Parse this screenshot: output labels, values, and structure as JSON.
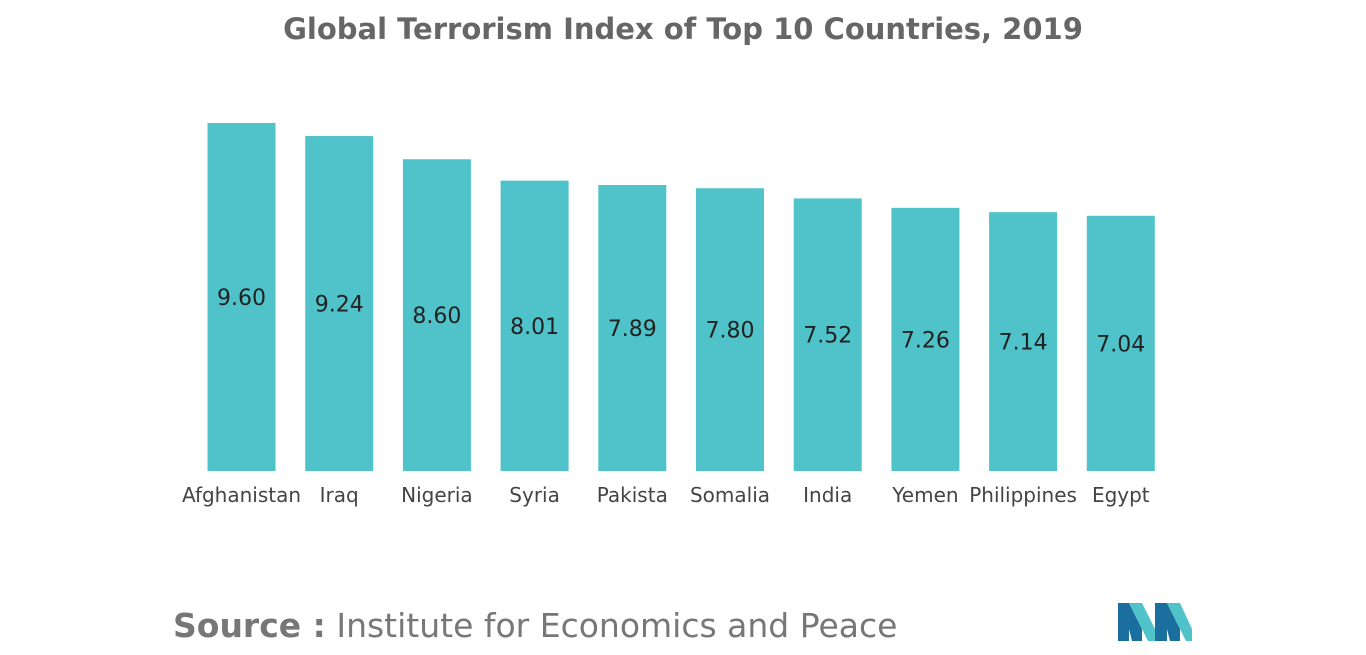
{
  "chart_data": {
    "type": "bar",
    "title": "Global Terrorism Index of Top 10 Countries, 2019",
    "categories": [
      "Afghanistan",
      "Iraq",
      "Nigeria",
      "Syria",
      "Pakista",
      "Somalia",
      "India",
      "Yemen",
      "Philippines",
      "Egypt"
    ],
    "values": [
      9.6,
      9.24,
      8.6,
      8.01,
      7.89,
      7.8,
      7.52,
      7.26,
      7.14,
      7.04
    ],
    "value_labels": [
      "9.60",
      "9.24",
      "8.60",
      "8.01",
      "7.89",
      "7.80",
      "7.52",
      "7.26",
      "7.14",
      "7.04"
    ],
    "xlabel": "",
    "ylabel": "",
    "ylim": [
      0,
      9.6
    ],
    "grid": false,
    "legend": "none",
    "bar_color": "#4fc3c9"
  },
  "source": {
    "label": "Source :",
    "text": "Institute for Economics and Peace"
  },
  "logo": {
    "icon": "mordor-intelligence-logo-icon",
    "colors": [
      "#1b6f9e",
      "#4fc3c9"
    ]
  }
}
